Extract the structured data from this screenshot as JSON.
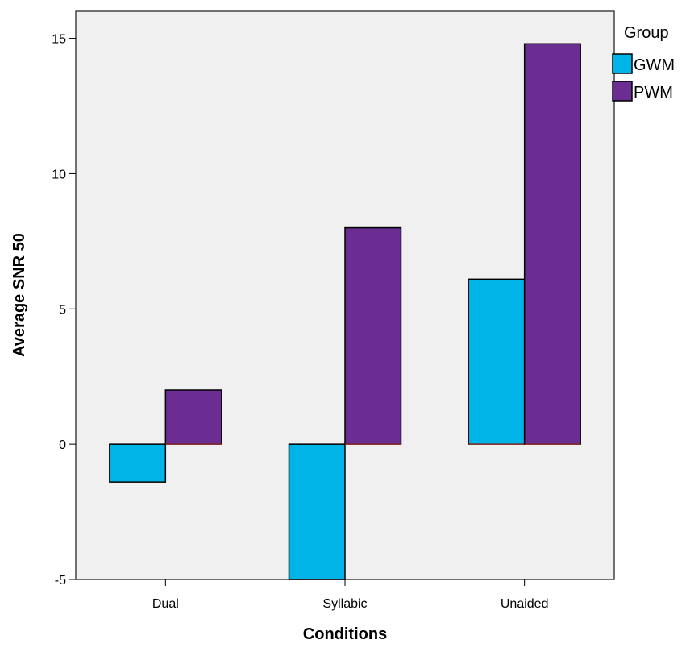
{
  "chart_data": {
    "type": "bar",
    "categories": [
      "Dual",
      "Syllabic",
      "Unaided"
    ],
    "series": [
      {
        "name": "GWM",
        "values": [
          -1.4,
          -5.0,
          6.1
        ],
        "color": "#00b4e8"
      },
      {
        "name": "PWM",
        "values": [
          2.0,
          8.0,
          14.8
        ],
        "color": "#6b2d91"
      }
    ],
    "xlabel": "Conditions",
    "ylabel": "Average SNR 50",
    "ylim": [
      -5,
      16
    ],
    "yticks": [
      -5,
      0,
      5,
      10,
      15
    ],
    "ytick_labels": [
      "-5",
      "0",
      "5",
      "10",
      "15"
    ],
    "legend_title": "Group",
    "legend_position": "right",
    "grid": false,
    "plot_background": "#f0f0f0",
    "bar_stroke": "#000000",
    "baseline_color": "#c0392b"
  }
}
